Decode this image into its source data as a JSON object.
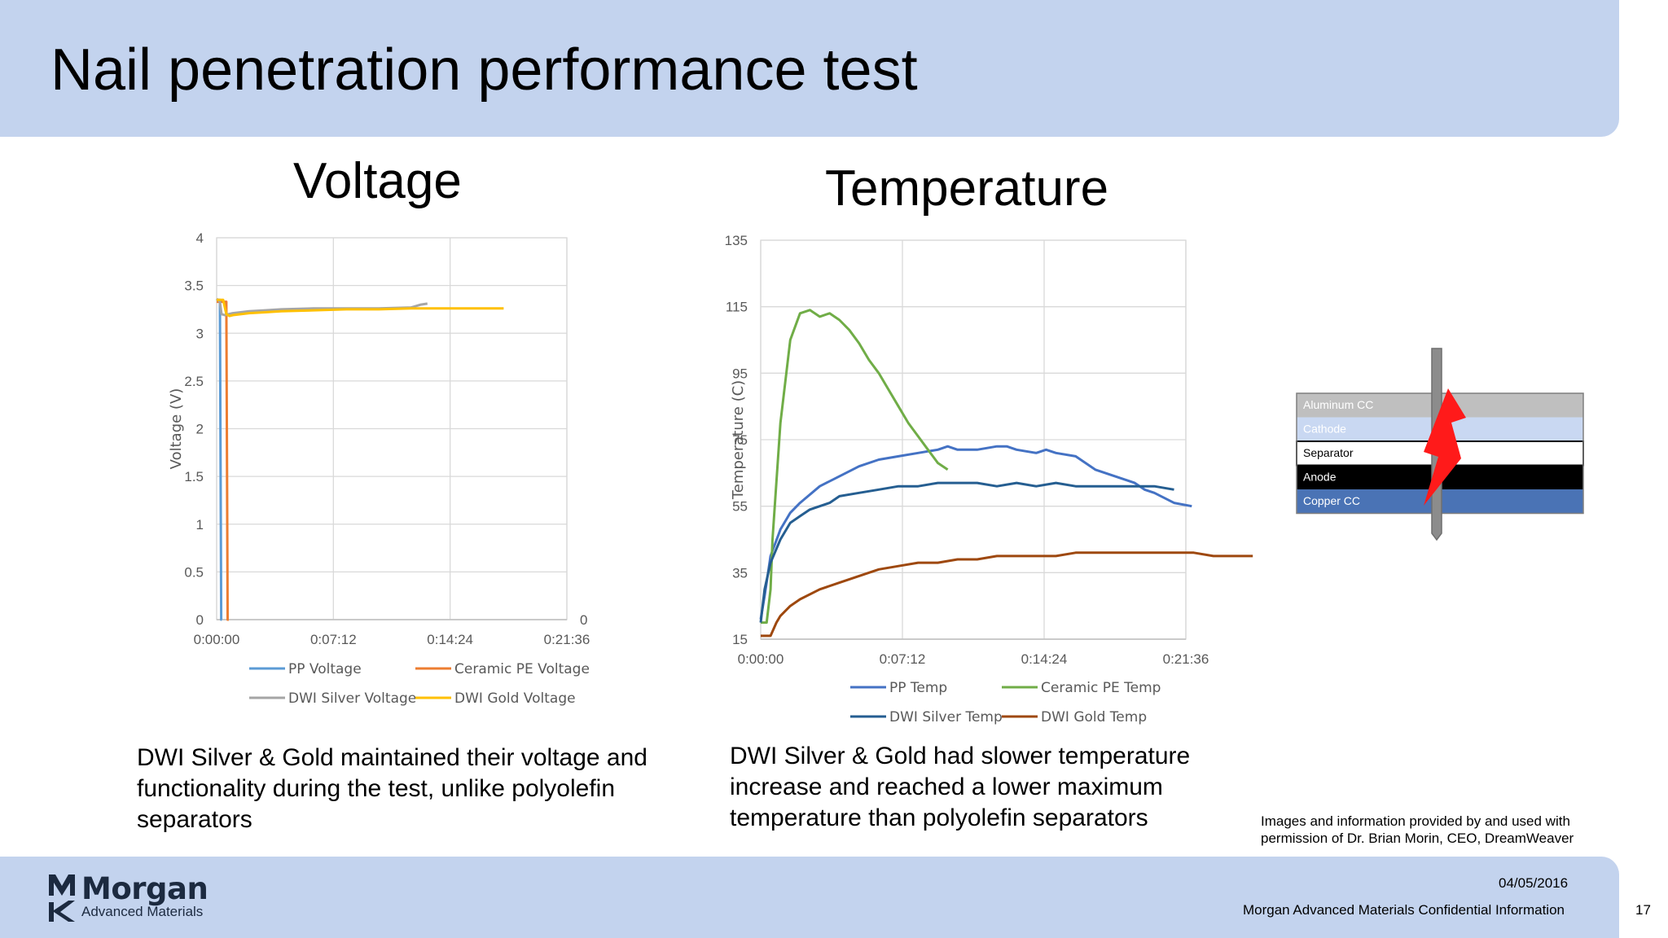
{
  "slide": {
    "title": "Nail penetration performance test",
    "page_number": "17",
    "date": "04/05/2016",
    "confidential": "Morgan Advanced Materials Confidential Information",
    "credit": "Images and information provided by and used with permission of Dr. Brian Morin, CEO, DreamWeaver"
  },
  "logo": {
    "name": "Morgan",
    "tagline": "Advanced Materials",
    "mark_icon": "morgan-mk-logo-icon"
  },
  "captions": {
    "voltage": "DWI Silver & Gold maintained their voltage and functionality during the test, unlike polyolefin separators",
    "temperature": "DWI Silver & Gold had slower temperature increase and reached a lower maximum temperature than polyolefin separators"
  },
  "diagram": {
    "layers": [
      {
        "label": "Aluminum CC",
        "color": "#bfbfbf",
        "text_color": "#ffffff"
      },
      {
        "label": "Cathode",
        "color": "#c9d8f2",
        "text_color": "#ffffff"
      },
      {
        "label": "Separator",
        "color": "#ffffff",
        "text_color": "#000000"
      },
      {
        "label": "Anode",
        "color": "#000000",
        "text_color": "#ffffff"
      },
      {
        "label": "Copper CC",
        "color": "#4a73b5",
        "text_color": "#ffffff"
      }
    ],
    "nail_color": "#8c8c8c",
    "spark_color": "#ff1a1a",
    "icons": [
      "nail-icon",
      "lightning-spark-icon"
    ]
  },
  "chart_data": [
    {
      "type": "line",
      "id": "voltage",
      "title": "Voltage",
      "xlabel": "",
      "ylabel": "Voltage (V)",
      "x_ticks": [
        "0:00:00",
        "0:07:12",
        "0:14:24",
        "0:21:36"
      ],
      "x_range_minutes": [
        0,
        21.6
      ],
      "ylim": [
        0,
        4
      ],
      "y_ticks": [
        "0",
        "0.5",
        "1",
        "1.5",
        "2",
        "2.5",
        "3",
        "3.5",
        "4"
      ],
      "secondary_y_tick": "0",
      "grid": true,
      "legend_position": "bottom",
      "series": [
        {
          "name": "PP Voltage",
          "color": "#5b9bd5",
          "x": [
            0,
            0.2,
            0.28,
            0.32
          ],
          "y": [
            3.35,
            3.35,
            0,
            0
          ]
        },
        {
          "name": "Ceramic PE Voltage",
          "color": "#ed7d31",
          "x": [
            0,
            0.6,
            0.68,
            0.75
          ],
          "y": [
            3.33,
            3.33,
            0,
            0
          ]
        },
        {
          "name": "DWI Silver Voltage",
          "color": "#a5a5a5",
          "x": [
            0,
            0.2,
            0.3,
            0.5,
            1.0,
            2,
            3,
            4,
            6,
            8,
            10,
            12,
            12.6,
            13.0
          ],
          "y": [
            3.36,
            3.33,
            3.2,
            3.19,
            3.21,
            3.23,
            3.24,
            3.25,
            3.26,
            3.26,
            3.26,
            3.27,
            3.3,
            3.31
          ]
        },
        {
          "name": "DWI Gold Voltage",
          "color": "#ffc000",
          "x": [
            0,
            0.4,
            0.6,
            0.8,
            1.0,
            2,
            3,
            4,
            6,
            8,
            10,
            12,
            14,
            16,
            17.7
          ],
          "y": [
            3.35,
            3.35,
            3.2,
            3.18,
            3.19,
            3.21,
            3.22,
            3.23,
            3.24,
            3.25,
            3.25,
            3.26,
            3.26,
            3.26,
            3.26
          ]
        }
      ]
    },
    {
      "type": "line",
      "id": "temperature",
      "title": "Temperature",
      "xlabel": "",
      "ylabel": "Temperature (C)",
      "x_ticks": [
        "0:00:00",
        "0:07:12",
        "0:14:24",
        "0:21:36"
      ],
      "x_range_minutes": [
        0,
        21.6
      ],
      "ylim": [
        15,
        135
      ],
      "y_ticks": [
        "15",
        "35",
        "55",
        "75",
        "95",
        "115",
        "135"
      ],
      "grid": true,
      "legend_position": "bottom",
      "series": [
        {
          "name": "PP Temp",
          "color": "#4472c4",
          "x": [
            0,
            0.2,
            0.5,
            1,
            1.5,
            2,
            3,
            4,
            5,
            6,
            7,
            8,
            9,
            9.5,
            10,
            11,
            12,
            12.5,
            13,
            14,
            14.5,
            15,
            16,
            17,
            18,
            19,
            19.5,
            20,
            21,
            21.9
          ],
          "y": [
            21,
            28,
            40,
            48,
            53,
            56,
            61,
            64,
            67,
            69,
            70,
            71,
            72,
            73,
            72,
            72,
            73,
            73,
            72,
            71,
            72,
            71,
            70,
            66,
            64,
            62,
            60,
            59,
            56,
            55
          ]
        },
        {
          "name": "Ceramic PE Temp",
          "color": "#70ad47",
          "x": [
            0,
            0.3,
            0.5,
            0.6,
            1,
            1.5,
            2,
            2.5,
            3,
            3.5,
            4,
            4.5,
            5,
            5.5,
            6,
            6.5,
            7,
            7.5,
            8,
            8.5,
            9,
            9.5
          ],
          "y": [
            20,
            20,
            30,
            45,
            80,
            105,
            113,
            114,
            112,
            113,
            111,
            108,
            104,
            99,
            95,
            90,
            85,
            80,
            76,
            72,
            68,
            66
          ]
        },
        {
          "name": "DWI Silver Temp",
          "color": "#255e91",
          "x": [
            0,
            0.2,
            0.5,
            1,
            1.5,
            2,
            2.5,
            3,
            3.5,
            4,
            5,
            6,
            7,
            8,
            9,
            10,
            11,
            12,
            13,
            14,
            15,
            16,
            17,
            18,
            19,
            20,
            21
          ],
          "y": [
            20,
            30,
            38,
            45,
            50,
            52,
            54,
            55,
            56,
            58,
            59,
            60,
            61,
            61,
            62,
            62,
            62,
            61,
            62,
            61,
            62,
            61,
            61,
            61,
            61,
            61,
            60
          ]
        },
        {
          "name": "DWI Gold Temp",
          "color": "#9e480e",
          "x": [
            0,
            0.3,
            0.5,
            0.8,
            1.0,
            1.5,
            2,
            3,
            4,
            5,
            6,
            7,
            8,
            9,
            10,
            11,
            12,
            13,
            14,
            15,
            16,
            17,
            18,
            19,
            20,
            21,
            22,
            23,
            24,
            25
          ],
          "y": [
            16,
            16,
            16,
            20,
            22,
            25,
            27,
            30,
            32,
            34,
            36,
            37,
            38,
            38,
            39,
            39,
            40,
            40,
            40,
            40,
            41,
            41,
            41,
            41,
            41,
            41,
            41,
            40,
            40,
            40
          ]
        }
      ]
    }
  ]
}
